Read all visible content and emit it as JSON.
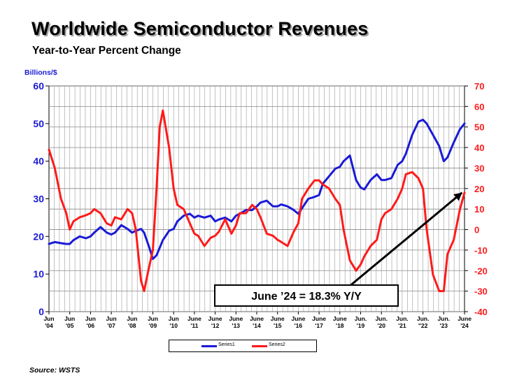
{
  "title": "Worldwide Semiconductor Revenues",
  "subtitle": "Year-to-Year Percent Change",
  "source": "Source: WSTS",
  "chart_data": {
    "type": "line",
    "unit_label": "Billions/$",
    "x_ticks": [
      "Jun\n'04",
      "Jun\n'05",
      "Jun\n'06",
      "Jun\n'07",
      "Jun\n'08",
      "Jun\n'09",
      "Jun\n'10",
      "June\n'11",
      "June\n'12",
      "June\n'13",
      "June\n'14",
      "June\n'15",
      "June\n'16",
      "June\n'17",
      "June\n'18",
      "Jun.\n'19",
      "Jun.\n'20",
      "Jun.\n'21",
      "Jun.\n\"22",
      "Jun.\n'23",
      "June\n'24"
    ],
    "y_left": {
      "min": 0,
      "max": 60,
      "ticks": [
        0,
        10,
        20,
        30,
        40,
        50,
        60
      ],
      "color": "#1a1ad6"
    },
    "y_right": {
      "min": -40,
      "max": 70,
      "ticks": [
        -40,
        -30,
        -20,
        -10,
        0,
        10,
        20,
        30,
        40,
        50,
        60,
        70
      ],
      "color": "#ff1a1a"
    },
    "grid": true,
    "legend_position": "bottom",
    "series": [
      {
        "name": "Series1",
        "axis": "left",
        "color": "#1a1ad6",
        "x": [
          2004.42,
          2004.7,
          2005.0,
          2005.25,
          2005.42,
          2005.6,
          2005.9,
          2006.2,
          2006.42,
          2006.6,
          2006.9,
          2007.2,
          2007.42,
          2007.6,
          2007.9,
          2008.2,
          2008.42,
          2008.6,
          2008.85,
          2009.0,
          2009.25,
          2009.42,
          2009.6,
          2009.9,
          2010.2,
          2010.42,
          2010.6,
          2010.9,
          2011.2,
          2011.42,
          2011.6,
          2011.9,
          2012.2,
          2012.42,
          2012.6,
          2012.9,
          2013.2,
          2013.42,
          2013.6,
          2013.9,
          2014.2,
          2014.42,
          2014.6,
          2014.9,
          2015.2,
          2015.42,
          2015.6,
          2015.9,
          2016.2,
          2016.42,
          2016.6,
          2016.9,
          2017.2,
          2017.42,
          2017.6,
          2017.9,
          2018.2,
          2018.42,
          2018.6,
          2018.9,
          2019.2,
          2019.42,
          2019.6,
          2019.9,
          2020.2,
          2020.42,
          2020.6,
          2020.9,
          2021.2,
          2021.42,
          2021.6,
          2021.9,
          2022.2,
          2022.42,
          2022.6,
          2022.9,
          2023.2,
          2023.42,
          2023.6,
          2023.9,
          2024.2,
          2024.42
        ],
        "y": [
          18,
          18.5,
          18.2,
          18,
          18,
          19,
          20,
          19.5,
          20,
          21,
          22.5,
          21,
          20.5,
          21,
          23,
          22,
          21,
          21.5,
          22,
          21,
          17,
          14,
          15,
          19,
          21.5,
          22,
          24,
          25.5,
          26,
          25,
          25.5,
          25,
          25.5,
          24,
          24.5,
          25,
          24,
          25.5,
          26,
          27,
          27,
          28,
          29,
          29.5,
          28,
          28,
          28.5,
          28,
          27,
          26,
          27.5,
          30,
          30.5,
          31,
          34,
          36,
          38,
          38.5,
          40,
          41.5,
          35,
          33,
          32.5,
          35,
          36.5,
          35,
          35,
          35.5,
          39,
          40,
          42,
          47,
          50.5,
          51,
          50,
          47,
          44,
          40,
          41,
          45,
          48.5,
          50
        ]
      },
      {
        "name": "Series2",
        "axis": "right",
        "color": "#ff1a1a",
        "x": [
          2004.42,
          2004.7,
          2005.0,
          2005.25,
          2005.42,
          2005.6,
          2005.9,
          2006.2,
          2006.42,
          2006.6,
          2006.9,
          2007.2,
          2007.42,
          2007.6,
          2007.9,
          2008.2,
          2008.42,
          2008.6,
          2008.85,
          2009.0,
          2009.2,
          2009.42,
          2009.6,
          2009.75,
          2009.9,
          2010.2,
          2010.42,
          2010.6,
          2010.9,
          2011.2,
          2011.42,
          2011.6,
          2011.9,
          2012.2,
          2012.42,
          2012.6,
          2012.9,
          2013.2,
          2013.42,
          2013.6,
          2013.9,
          2014.2,
          2014.42,
          2014.6,
          2014.9,
          2015.2,
          2015.42,
          2015.6,
          2015.9,
          2016.2,
          2016.42,
          2016.6,
          2016.9,
          2017.2,
          2017.42,
          2017.6,
          2017.9,
          2018.2,
          2018.42,
          2018.6,
          2018.9,
          2019.2,
          2019.42,
          2019.6,
          2019.9,
          2020.2,
          2020.42,
          2020.6,
          2020.9,
          2021.2,
          2021.42,
          2021.6,
          2021.9,
          2022.2,
          2022.42,
          2022.6,
          2022.9,
          2023.2,
          2023.42,
          2023.6,
          2023.9,
          2024.2,
          2024.42
        ],
        "y": [
          39,
          30,
          15,
          8,
          0,
          4,
          6,
          7,
          8,
          10,
          8,
          3,
          2,
          6,
          5,
          10,
          8,
          0,
          -25,
          -30,
          -20,
          -10,
          20,
          50,
          58,
          40,
          20,
          12,
          10,
          3,
          -2,
          -3,
          -8,
          -4,
          -3,
          -1,
          5,
          -2,
          2,
          8,
          8,
          12,
          10,
          6,
          -2,
          -3,
          -5,
          -6,
          -8,
          -1,
          3,
          15,
          20,
          24,
          24,
          22,
          20,
          15,
          12,
          0,
          -15,
          -20,
          -17,
          -13,
          -8,
          -5,
          5,
          8,
          10,
          15,
          20,
          27,
          28,
          25,
          20,
          0,
          -22,
          -30,
          -30,
          -12,
          -5,
          10,
          18
        ]
      }
    ],
    "annotation": {
      "text": "June ’24 = 18.3% Y/Y",
      "arrow": {
        "from_x": 2018.0,
        "from_right_y": -35,
        "to_x": 2024.3,
        "to_right_y": 18
      }
    }
  }
}
